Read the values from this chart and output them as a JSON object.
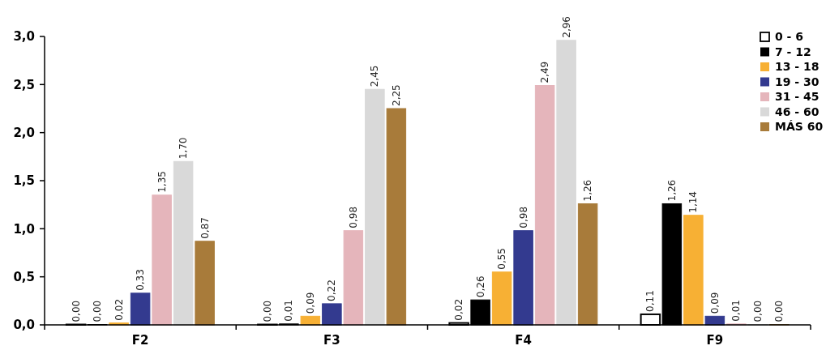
{
  "chart_data": {
    "type": "bar",
    "categories": [
      "F2",
      "F3",
      "F4",
      "F9"
    ],
    "series": [
      {
        "name": "0 - 6",
        "color": "#ffffff",
        "values": [
          0.004,
          0.004,
          0.02,
          0.11
        ],
        "value_labels": [
          "0,00",
          "0,00",
          "0,02",
          "0,11"
        ]
      },
      {
        "name": "7 - 12",
        "color": "#000000",
        "values": [
          0.004,
          0.01,
          0.26,
          1.26
        ],
        "value_labels": [
          "0,00",
          "0,01",
          "0,26",
          "1,26"
        ]
      },
      {
        "name": "13 - 18",
        "color": "#f7b034",
        "values": [
          0.02,
          0.09,
          0.55,
          1.14
        ],
        "value_labels": [
          "0,02",
          "0,09",
          "0,55",
          "1,14"
        ]
      },
      {
        "name": "19 - 30",
        "color": "#333a8f",
        "values": [
          0.33,
          0.22,
          0.98,
          0.09
        ],
        "value_labels": [
          "0,33",
          "0,22",
          "0,98",
          "0,09"
        ]
      },
      {
        "name": "31 - 45",
        "color": "#e5b5bb",
        "values": [
          1.35,
          0.98,
          2.49,
          0.01
        ],
        "value_labels": [
          "1,35",
          "0,98",
          "2,49",
          "0,01"
        ]
      },
      {
        "name": "46 - 60",
        "color": "#d9d9d9",
        "values": [
          1.7,
          2.45,
          2.96,
          0.004
        ],
        "value_labels": [
          "1,70",
          "2,45",
          "2,96",
          "0,00"
        ]
      },
      {
        "name": "MÁS 60",
        "color": "#a87b3a",
        "values": [
          0.87,
          2.25,
          1.26,
          0.004
        ],
        "value_labels": [
          "0,87",
          "2,25",
          "1,26",
          "0,00"
        ]
      }
    ],
    "ylim": [
      0,
      3
    ],
    "yticks": [
      {
        "value": 0,
        "label": "0,0"
      },
      {
        "value": 0.5,
        "label": "0,5"
      },
      {
        "value": 1,
        "label": "1,0"
      },
      {
        "value": 1.5,
        "label": "1,5"
      },
      {
        "value": 2,
        "label": "2,0"
      },
      {
        "value": 2.5,
        "label": "2,5"
      },
      {
        "value": 3,
        "label": "3,0"
      }
    ],
    "legend": "top right",
    "grid": false
  }
}
